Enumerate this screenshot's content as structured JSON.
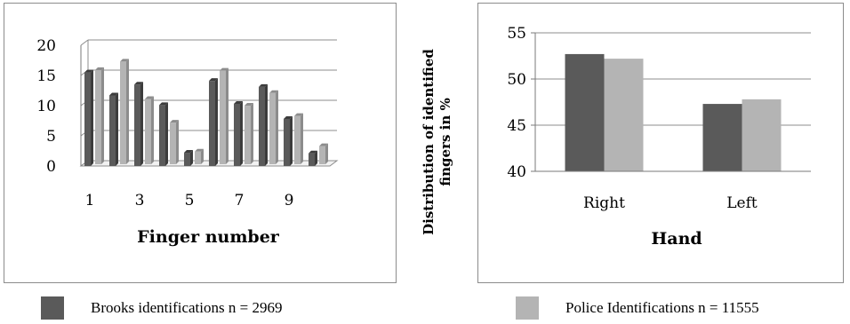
{
  "chart_data": [
    {
      "type": "bar",
      "style": "3d-clustered",
      "categories": [
        "1",
        "2",
        "3",
        "4",
        "5",
        "6",
        "7",
        "8",
        "9",
        "10"
      ],
      "tick_labels": [
        "1",
        "3",
        "5",
        "7",
        "9"
      ],
      "series": [
        {
          "name": "Brooks identifications n = 2969",
          "values": [
            15.5,
            11.7,
            13.5,
            10.1,
            2.2,
            14.1,
            10.3,
            13.1,
            7.8,
            2.1
          ]
        },
        {
          "name": "Police Identifications n = 11555",
          "values": [
            15.6,
            17.0,
            10.8,
            6.9,
            2.1,
            15.5,
            9.7,
            11.8,
            8.0,
            3.0
          ]
        }
      ],
      "xlabel": "Finger number",
      "ylabel": "",
      "ylim": [
        0,
        20
      ],
      "yticks": [
        "0",
        "5",
        "10",
        "15",
        "20"
      ],
      "grid": true
    },
    {
      "type": "bar",
      "categories": [
        "Right",
        "Left"
      ],
      "series": [
        {
          "name": "Brooks identifications n = 2969",
          "values": [
            52.7,
            47.3
          ]
        },
        {
          "name": "Police Identifications n = 11555",
          "values": [
            52.2,
            47.8
          ]
        }
      ],
      "xlabel": "Hand",
      "ylabel": "Distribution of identified fingers in %",
      "ylabel_lines": [
        "Distribution of identified",
        "fingers in %"
      ],
      "ylim": [
        40,
        55
      ],
      "yticks": [
        "40",
        "45",
        "50",
        "55"
      ],
      "grid": true
    }
  ],
  "legend": [
    {
      "label": "Brooks identifications n = 2969",
      "color": "#5a5a5a"
    },
    {
      "label": "Police Identifications n = 11555",
      "color": "#b4b4b4"
    }
  ],
  "colors": {
    "series1": "#5a5a5a",
    "series1_side": "#3c3c3c",
    "series2": "#b4b4b4",
    "series2_side": "#8c8c8c",
    "grid": "#8c8c8c",
    "axis": "#7a7a7a"
  }
}
